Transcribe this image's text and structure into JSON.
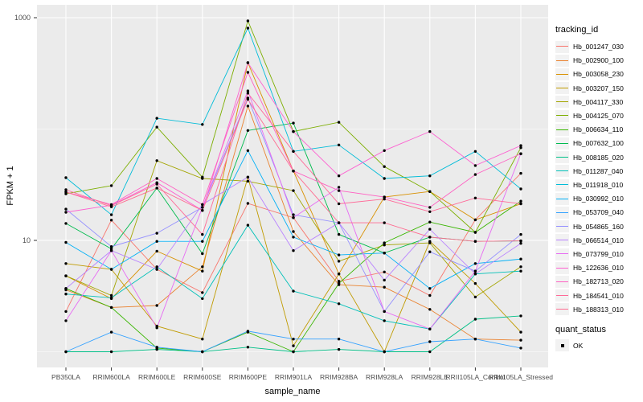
{
  "figure": {
    "background": "#FFFFFF",
    "panel_background": "#EBEBEB",
    "gridline_color": "#FFFFFF",
    "tick_color": "#333333",
    "tick_label_color": "#4D4D4D",
    "point_color": "#000000"
  },
  "chart_data": {
    "type": "line",
    "title": "",
    "xlabel": "sample_name",
    "ylabel": "FPKM + 1",
    "y_scale": "log10",
    "ylim": [
      0.88,
      1250
    ],
    "grid": true,
    "legend_position": "right",
    "y_ticks": [
      {
        "label": "1000",
        "value": 1000
      },
      {
        "label": "10",
        "value": 10
      }
    ],
    "y_minor_values": [
      100,
      1
    ],
    "categories": [
      "PB350LA",
      "RRIM600LA",
      "RRIM600LE",
      "RRIM600SE",
      "RRIM600PE",
      "RRIM901LA",
      "RRIM928BA",
      "RRIM928LA",
      "RRIM928LE",
      "RRII105LA_Control",
      "RRII105LA_Stressed"
    ],
    "series": [
      {
        "name": "Hb_001247_030",
        "color": "#F8766D",
        "values": [
          2.3,
          15.2,
          5.5,
          3.4,
          21.5,
          16,
          4.3,
          5.2,
          3.2,
          15.3,
          40
        ]
      },
      {
        "name": "Hb_002900_100",
        "color": "#EA8331",
        "values": [
          3.6,
          2.5,
          2.6,
          5.8,
          161,
          12,
          4.0,
          3.8,
          2.4,
          1.3,
          1.27
        ]
      },
      {
        "name": "Hb_003058_230",
        "color": "#D89000",
        "values": [
          4.8,
          3.0,
          8.0,
          5.3,
          394,
          42,
          5.0,
          24.5,
          27.5,
          15.3,
          21.3
        ]
      },
      {
        "name": "Hb_003207_150",
        "color": "#C09B00",
        "values": [
          6.2,
          5.5,
          1.7,
          1.3,
          37,
          1.13,
          5.0,
          1.0,
          9.8,
          4.1,
          1.5
        ]
      },
      {
        "name": "Hb_004117_330",
        "color": "#A3A500",
        "values": [
          4.8,
          3.2,
          52,
          36,
          34,
          28,
          6.5,
          9.1,
          9.5,
          3.1,
          5.8
        ]
      },
      {
        "name": "Hb_004125_070",
        "color": "#7CAE00",
        "values": [
          26.2,
          31,
          104,
          37,
          935,
          95,
          115,
          46,
          27.5,
          11.8,
          68
        ]
      },
      {
        "name": "Hb_006634_110",
        "color": "#39B600",
        "values": [
          3.7,
          2.5,
          1.08,
          1.0,
          1.5,
          1.0,
          4.1,
          9.5,
          14.6,
          11.8,
          22.5
        ]
      },
      {
        "name": "Hb_007632_100",
        "color": "#00BB4E",
        "values": [
          14.2,
          8.4,
          29.5,
          7.6,
          97,
          113,
          11.3,
          7.7,
          10.7,
          9.8,
          9.9
        ]
      },
      {
        "name": "Hb_008185_020",
        "color": "#00C087",
        "values": [
          1.0,
          1.0,
          1.05,
          1.0,
          1.1,
          1.0,
          1.05,
          1.0,
          1.0,
          1.96,
          2.1
        ]
      },
      {
        "name": "Hb_011287_040",
        "color": "#00C0B8",
        "values": [
          3.3,
          3.05,
          5.8,
          3.0,
          13.7,
          3.5,
          2.7,
          1.9,
          1.6,
          5.0,
          5.3
        ]
      },
      {
        "name": "Hb_011918_010",
        "color": "#00BCD8",
        "values": [
          36.6,
          17,
          125,
          110,
          806,
          63,
          72,
          36,
          38,
          63,
          29
        ]
      },
      {
        "name": "Hb_030992_010",
        "color": "#00B0F6",
        "values": [
          9.6,
          5.5,
          9.8,
          9.8,
          64,
          10.7,
          7.4,
          7.7,
          3.7,
          6.2,
          6.8
        ]
      },
      {
        "name": "Hb_053709_040",
        "color": "#35A2FF",
        "values": [
          1.0,
          1.5,
          1.1,
          1.0,
          1.53,
          1.3,
          1.3,
          1.0,
          1.23,
          1.3,
          1.08
        ]
      },
      {
        "name": "Hb_054865_160",
        "color": "#9590FF",
        "values": [
          19.1,
          8.8,
          11.6,
          19.8,
          190,
          17,
          14.4,
          2.3,
          7.9,
          5.3,
          11.3
        ]
      },
      {
        "name": "Hb_066514_010",
        "color": "#B983FF",
        "values": [
          3.7,
          8.1,
          5.5,
          21,
          37,
          8.1,
          14.4,
          4.4,
          12.6,
          5.0,
          9.4
        ]
      },
      {
        "name": "Hb_073799_010",
        "color": "#E76BF3",
        "values": [
          1.9,
          8.1,
          1.64,
          19.8,
          220,
          16,
          30,
          2.3,
          1.6,
          5.3,
          60
        ]
      },
      {
        "name": "Hb_122636_010",
        "color": "#FD61D1",
        "values": [
          17.9,
          20.7,
          33,
          18.6,
          394,
          95,
          38,
          64,
          95,
          47,
          71
        ]
      },
      {
        "name": "Hb_182713_020",
        "color": "#FF61C3",
        "values": [
          27.2,
          21,
          36,
          21,
          323,
          42,
          28,
          24.5,
          19.8,
          39,
          60
        ]
      },
      {
        "name": "Hb_184541_010",
        "color": "#FF6A98",
        "values": [
          28.5,
          20.5,
          32,
          11.3,
          210,
          63,
          21.3,
          23.5,
          18.1,
          24,
          21.3
        ]
      },
      {
        "name": "Hb_188313_010",
        "color": "#FF6C91",
        "values": [
          27.2,
          20,
          29.5,
          18.6,
          185,
          42,
          14.4,
          14.4,
          10.7,
          9.8,
          9.9
        ]
      }
    ],
    "legend": {
      "color_title": "tracking_id",
      "shape_title": "quant_status",
      "shape_entries": [
        {
          "label": "OK"
        }
      ]
    }
  }
}
